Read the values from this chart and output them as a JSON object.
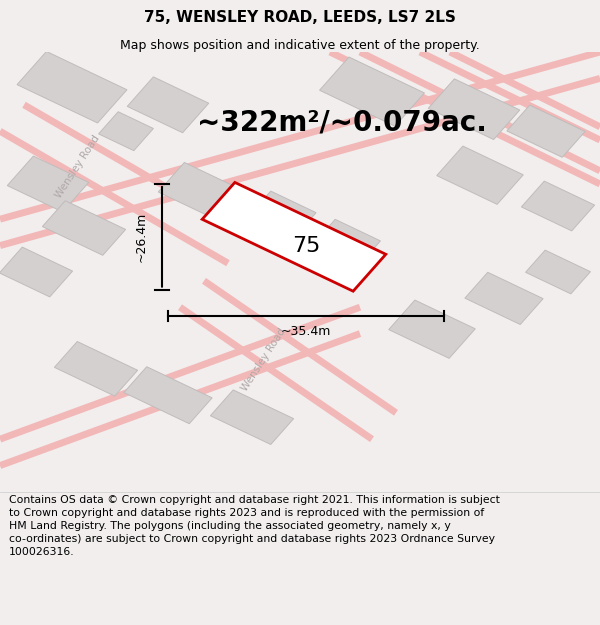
{
  "title": "75, WENSLEY ROAD, LEEDS, LS7 2LS",
  "subtitle": "Map shows position and indicative extent of the property.",
  "area_text": "~322m²/~0.079ac.",
  "property_number": "75",
  "dim_width": "~35.4m",
  "dim_height": "~26.4m",
  "footer_text": "Contains OS data © Crown copyright and database right 2021. This information is subject\nto Crown copyright and database rights 2023 and is reproduced with the permission of\nHM Land Registry. The polygons (including the associated geometry, namely x, y\nco-ordinates) are subject to Crown copyright and database rights 2023 Ordnance Survey\n100026316.",
  "bg_color": "#f2eeee",
  "map_bg": "#ffffff",
  "road_color": "#f2b8b8",
  "building_fill": "#d4d0d0",
  "building_edge": "#c0bcbc",
  "property_fill": "#ffffff",
  "property_edge": "#cc0000",
  "title_fontsize": 11,
  "subtitle_fontsize": 9,
  "area_fontsize": 20,
  "prop_label_fontsize": 16,
  "dim_fontsize": 9,
  "road_label_fontsize": 7.5,
  "footer_fontsize": 7.8
}
